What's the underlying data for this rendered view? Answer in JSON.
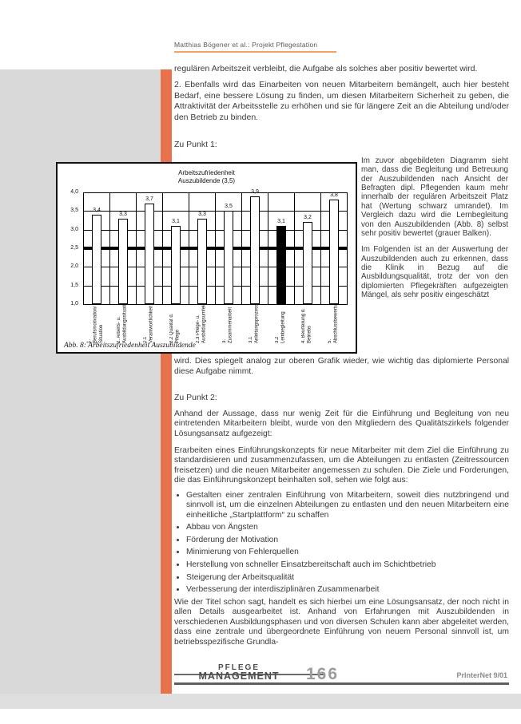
{
  "header": {
    "running_title": "Matthias Bögener et al.: Projekt Pflegestation"
  },
  "intro": {
    "p1": "regulären Arbeitszeit verbleibt, die Aufgabe als solches aber positiv bewertet wird.",
    "p2": "2. Ebenfalls wird das Einarbeiten von neuen Mitarbeitern bemängelt, auch hier besteht Bedarf, eine bessere Lösung zu finden, um diesen Mitarbeitern Sicherheit zu geben, die Attraktivität der Arbeitsstelle zu erhöhen und sie für längere Zeit an die Abteilung und/oder den Betrieb zu binden."
  },
  "sections": {
    "punkt1_heading": "Zu Punkt 1:",
    "punkt2_heading": "Zu Punkt 2:"
  },
  "side_column": {
    "p1": "Im zuvor abgebildeten Diagramm sieht man, dass die Begleitung und Betreuung der Auszubildenden nach Ansicht der Befragten dipl. Pflegenden kaum mehr innerhalb der regulären Arbeitszeit Platz hat (Wertung schwarz umrandet). Im Vergleich dazu wird die Lernbegleitung von den Auszubildenden (Abb. 8) selbst sehr positiv bewertet (grauer Balken).",
    "p2": "Im Folgenden ist an der Auswertung der Auszubildenden auch zu erkennen, dass die Klinik in Bezug auf die Ausbildungsqualität, trotz der von den diplomierten Pflegekräften aufgezeigten Mängel, als sehr positiv eingeschätzt"
  },
  "continuation": "wird. Dies spiegelt analog zur oberen Grafik wieder, wie wichtig das diplomierte Personal diese Aufgabe nimmt.",
  "punkt2": {
    "p1": "Anhand der Aussage, dass nur wenig Zeit für die Einführung und Begleitung von neu eintretenden Mitarbeitern bleibt, wurde von den Mitgliedern des Qualitätszirkels folgender Lösungsansatz aufgezeigt:",
    "p2": "Erarbeiten eines Einführungskonzepts für neue Mitarbeiter mit dem Ziel die Einführung zu standardisieren und zusammenzufassen, um die Abteilungen zu entlasten (Zeitressourcen freisetzen) und die neuen Mitarbeiter angemessen zu schulen. Die Ziele und Forderungen, die das Einführungskonzept beinhalten soll, sehen wie folgt aus:"
  },
  "bullets": [
    "Gestalten einer zentralen Einführung von Mitarbeitern, soweit dies nutzbringend und sinnvoll ist, um die einzelnen Abteilungen zu entlasten und den neuen Mitarbeitern eine einheitliche „Startplattform“ zu schaffen",
    "Abbau von Ängsten",
    "Förderung der Motivation",
    "Minimierung von Fehlerquellen",
    "Herstellung von schneller Einsatzbereitschaft auch im Schichtbetrieb",
    "Steigerung der Arbeitsqualität",
    "Verbesserung der interdisziplinären Zusammenarbeit"
  ],
  "closing": "Wie der Titel schon sagt, handelt es sich hierbei um eine Lösungsansatz, der noch nicht in allen Details ausgearbeitet ist. Anhand von Erfahrungen mit Auszubildenden in verschiedenen Ausbildungsphasen und von diversen Schulen kann aber abgeleitet werden, dass eine zentrale und übergeordnete Einführung von neuem Personal sinnvoll ist, um betriebsspezifische Grundla-",
  "figure": {
    "caption": "Abb. 8: Arbeitszufriedenheit Auszubildende"
  },
  "footer": {
    "logo_line1": "PFLEGE",
    "logo_line2": "MANAGEMENT",
    "page_number": "166",
    "issue_label": "PrInterNet 9/01"
  },
  "colors": {
    "accent_orange": "#e8724c",
    "header_underline": "#f2a266",
    "panel_gray": "#d9d9d9",
    "highlight_bar": "#000000"
  },
  "chart_data": {
    "type": "bar",
    "title_line1": "Arbeitszufriedenheit",
    "title_line2": "Auszubildende (3,5)",
    "categories": [
      "1. Berufsmotivation/ Situation",
      "2. Arbeits- u. Ausbildungssituation",
      "2.1 Verantwortlichkeit",
      "2.2 Qualität d. Pflege",
      "2.3 Pflege- u. Ausbildungsumfeld",
      "3. Zusammenarbeit",
      "3.1 Anleitungsprozess",
      "3.2 Lernbegleitung",
      "4. Beurteilung d. Betriebs",
      "5. Abschlussbewertung"
    ],
    "values": [
      3.4,
      3.3,
      3.7,
      3.1,
      3.3,
      3.5,
      3.9,
      3.1,
      3.2,
      3.8
    ],
    "highlight_index": 7,
    "reference_line": 2.5,
    "ylim": [
      1.0,
      4.0
    ],
    "yticks": [
      4.0,
      3.5,
      3.0,
      2.5,
      2.0,
      1.5,
      1.0
    ],
    "grid": true,
    "legend": "none",
    "xlabel": "",
    "ylabel": ""
  }
}
